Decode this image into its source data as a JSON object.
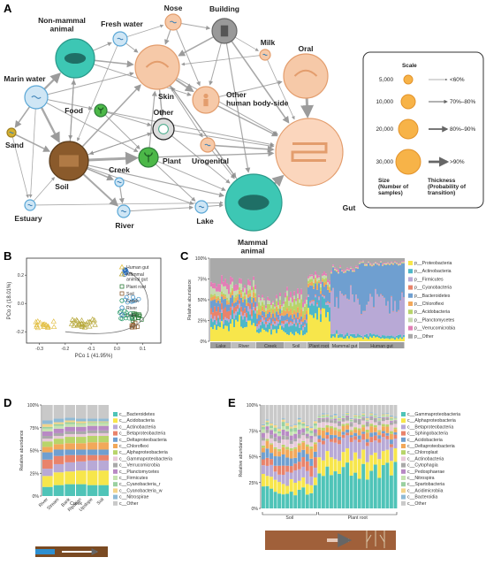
{
  "panels": {
    "a": "A",
    "b": "B",
    "c": "C",
    "d": "D",
    "e": "E"
  },
  "network": {
    "nodes": [
      {
        "id": "nonmammal",
        "label": "Non-mammal\nanimal",
        "icon": "fish-icon"
      },
      {
        "id": "freshwater",
        "label": "Fresh water",
        "icon": "water-drop-icon"
      },
      {
        "id": "nose",
        "label": "Nose",
        "icon": "nose-icon"
      },
      {
        "id": "building",
        "label": "Building",
        "icon": "building-icon"
      },
      {
        "id": "milk",
        "label": "Milk",
        "icon": "milk-icon"
      },
      {
        "id": "oral",
        "label": "Oral",
        "icon": "mouth-icon"
      },
      {
        "id": "marinwater",
        "label": "Marin water",
        "icon": "wave-icon"
      },
      {
        "id": "skin",
        "label": "Skin",
        "icon": "skin-icon"
      },
      {
        "id": "food",
        "label": "Food",
        "icon": "food-icon"
      },
      {
        "id": "other",
        "label": "Other",
        "icon": "other-icon"
      },
      {
        "id": "otherhuman",
        "label": "Other\nhuman body-side",
        "icon": "person-icon"
      },
      {
        "id": "sand",
        "label": "Sand",
        "icon": "sand-icon"
      },
      {
        "id": "soil",
        "label": "Soil",
        "icon": "soil-icon"
      },
      {
        "id": "plant",
        "label": "Plant",
        "icon": "plant-icon"
      },
      {
        "id": "urogenital",
        "label": "Urogenital",
        "icon": "urogenital-icon"
      },
      {
        "id": "gut",
        "label": "Gut",
        "icon": "gut-icon"
      },
      {
        "id": "creek",
        "label": "Creek",
        "icon": "creek-icon"
      },
      {
        "id": "estuary",
        "label": "Estuary",
        "icon": "estuary-icon"
      },
      {
        "id": "river",
        "label": "River",
        "icon": "river-icon"
      },
      {
        "id": "lake",
        "label": "Lake",
        "icon": "lake-icon"
      },
      {
        "id": "mammal",
        "label": "Mammal\nanimal",
        "icon": "cow-icon"
      }
    ],
    "legend": {
      "scale_title": "Scale",
      "sizes": [
        "5,000",
        "10,000",
        "20,000",
        "30,000"
      ],
      "thickness": [
        "<60%",
        "70%–80%",
        "80%–90%",
        ">90%"
      ],
      "size_caption": "Size\n(Number of\nsamples)",
      "thickness_caption": "Thickness\n(Probability of\ntransition)"
    }
  },
  "chart_data": [
    {
      "panel": "B",
      "type": "scatter",
      "xlabel": "PCo 1 (41.95%)",
      "ylabel": "PCo 2 (18.01%)",
      "xticks": [
        "-0.3",
        "-0.2",
        "-0.1",
        "0.0",
        "0.1"
      ],
      "yticks": [
        "-0.2",
        "0.0",
        "0.2"
      ],
      "xlim": [
        -0.35,
        0.17
      ],
      "ylim": [
        -0.28,
        0.32
      ],
      "series": [
        {
          "name": "Human gut",
          "marker": "triangle",
          "color": "#e3c14a"
        },
        {
          "name": "Mammal\nanimal gut",
          "marker": "triangle",
          "color": "#b7a83a"
        },
        {
          "name": "Plant root",
          "marker": "square",
          "color": "#2e7d3a"
        },
        {
          "name": "Soil",
          "marker": "square",
          "color": "#8a5a2b"
        },
        {
          "name": "Creek",
          "marker": "circle",
          "color": "#2a9a6b"
        },
        {
          "name": "River",
          "marker": "circle",
          "color": "#3c8dc4"
        },
        {
          "name": "Lake",
          "marker": "circle",
          "color": "#2e6fb8"
        }
      ]
    },
    {
      "panel": "C",
      "type": "bar",
      "ylabel": "Relative abundance",
      "yticks": [
        "0%",
        "25%",
        "50%",
        "75%",
        "100%"
      ],
      "groups": [
        "Lake",
        "River",
        "Creek",
        "Soil",
        "Plant root",
        "Mammal gut",
        "Human gut"
      ],
      "legend": [
        "p__Proteobacteria",
        "p__Actinobacteria",
        "p__Firmicutes",
        "p__Cyanobacteria",
        "p__Bacteroidetes",
        "p__Chloroflexi",
        "p__Acidobacteria",
        "p__Planctomycetes",
        "p__Verrucomicrobia",
        "p__Other"
      ],
      "colors": [
        "#f7e64b",
        "#4fb8c8",
        "#b8a9d6",
        "#e9836b",
        "#6f9fd0",
        "#f2a85a",
        "#b8d46a",
        "#c6d9b0",
        "#e27fb6",
        "#a9a9a9"
      ]
    },
    {
      "panel": "D",
      "type": "bar",
      "ylabel": "Relative abundance",
      "yticks": [
        "0%",
        "25%",
        "50%",
        "75%",
        "100%"
      ],
      "categories": [
        "River",
        "Stream",
        "Bank",
        "Riparian",
        "Upslope",
        "Soil"
      ],
      "group_label": "Creek",
      "legend": [
        "c__Bacteroidetes",
        "c__Acidobacteria",
        "c__Actinobacteria",
        "c__Betaproteobacteria",
        "c__Deltaproteobacteria",
        "c__Chloroflexi",
        "c__Alphaproteobacteria",
        "c__Gammaproteobacteria",
        "c__Verrucomicrobia",
        "c__Planctomycetes",
        "c__Firmicutes",
        "c__Cyanobacteria_r",
        "c__Cyanobacteria_w",
        "c__Nitrospirae",
        "c__Other"
      ],
      "colors": [
        "#4fc4b8",
        "#f7e64b",
        "#b8a9d6",
        "#e9836b",
        "#6f9fd0",
        "#f2a85a",
        "#b8d46a",
        "#e8c9d9",
        "#a9a9a9",
        "#b889c4",
        "#c6e3b0",
        "#9ad0a0",
        "#f3d48a",
        "#8fbad6",
        "#c9c9c9"
      ]
    },
    {
      "panel": "E",
      "type": "bar",
      "ylabel": "Relative abundance",
      "yticks": [
        "0%",
        "25%",
        "50%",
        "75%",
        "100%"
      ],
      "groups": [
        "Soil",
        "Plant root"
      ],
      "legend": [
        "c__Gammaproteobacteria",
        "c__Alphaproteobacteria",
        "c__Betaproteobacteria",
        "c__Sphingobacteria",
        "c__Acidobacteria",
        "c__Deltaproteobacteria",
        "c__Chloroplast",
        "c__Actinobacteria",
        "c__Cytophagia",
        "c__Pedosphaerae",
        "c__Nitrospira",
        "c__Spartobacteria",
        "c__Acidimicrobiia",
        "c__Bacteroidia",
        "c__Other"
      ],
      "colors": [
        "#4fc4b8",
        "#f7e64b",
        "#b8a9d6",
        "#e9836b",
        "#6f9fd0",
        "#f2a85a",
        "#b8d46a",
        "#e8c9d9",
        "#a9a9a9",
        "#b889c4",
        "#c6e3b0",
        "#9ad0a0",
        "#f3d48a",
        "#8fbad6",
        "#c9c9c9"
      ]
    }
  ]
}
